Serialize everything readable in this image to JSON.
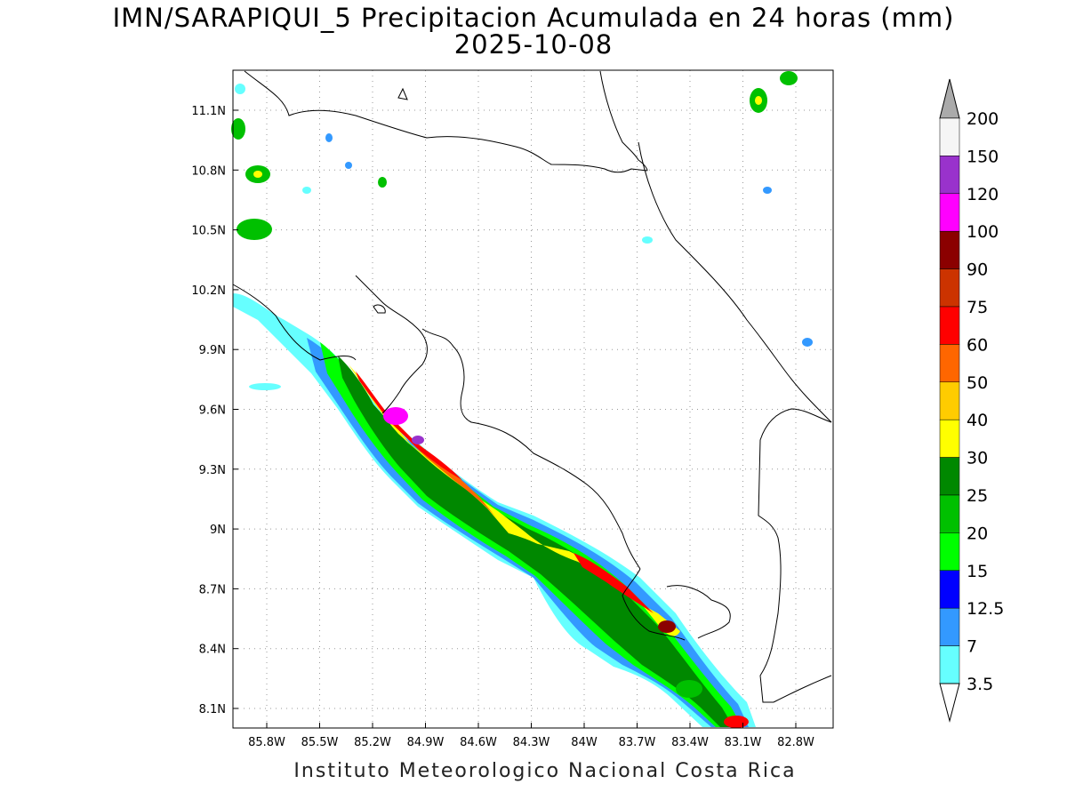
{
  "title": {
    "line1": "IMN/SARAPIQUI_5 Precipitacion Acumulada en 24 horas (mm)",
    "line2": "2025-10-08"
  },
  "footer": "Instituto Meteorologico Nacional Costa Rica",
  "map": {
    "lon_range": [
      -86.0,
      -82.6
    ],
    "lat_range": [
      8.0,
      11.3
    ],
    "lon_ticks": [
      "85.8W",
      "85.5W",
      "85.2W",
      "84.9W",
      "84.6W",
      "84.3W",
      "84W",
      "83.7W",
      "83.4W",
      "83.1W",
      "82.8W"
    ],
    "lat_ticks": [
      "11.1N",
      "10.8N",
      "10.5N",
      "10.2N",
      "9.9N",
      "9.6N",
      "9.3N",
      "9N",
      "8.7N",
      "8.4N",
      "8.1N"
    ],
    "grid": "dotted"
  },
  "colorbar": {
    "levels": [
      "200",
      "150",
      "120",
      "100",
      "90",
      "75",
      "60",
      "50",
      "40",
      "30",
      "25",
      "20",
      "15",
      "12.5",
      "7",
      "3.5"
    ],
    "colors": [
      "#f5f5f5",
      "#9932cc",
      "#ff00ff",
      "#8b0000",
      "#cc3300",
      "#ff0000",
      "#ff6600",
      "#ffcc00",
      "#ffff00",
      "#008800",
      "#00c000",
      "#00ff00",
      "#0000ff",
      "#3399ff",
      "#66ffff"
    ],
    "over_color": "#aaaaaa"
  }
}
